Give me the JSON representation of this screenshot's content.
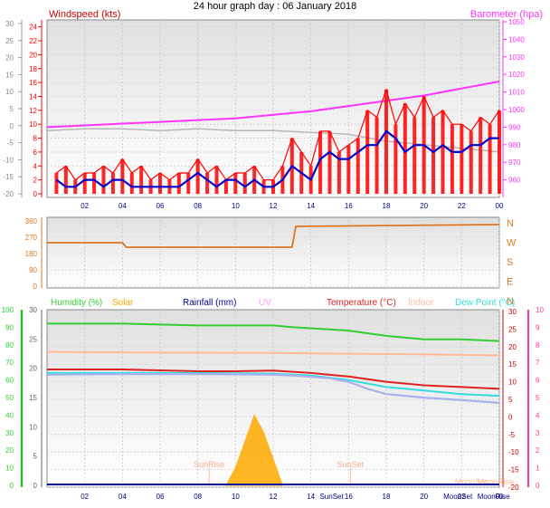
{
  "title": "24 hour graph day : 06 January 2018",
  "x_ticks": [
    "02",
    "04",
    "06",
    "08",
    "10",
    "12",
    "14",
    "16",
    "18",
    "20",
    "22",
    "00"
  ],
  "colors": {
    "wind_red": "#ff0000",
    "wind_blue": "#0000cc",
    "baro": "#ff33ff",
    "baro_grey": "#b8b8b8",
    "dir": "#dd7722",
    "humidity": "#33cc33",
    "solar": "#ffaa00",
    "rain": "#000099",
    "uv": "#ff99ff",
    "temperature": "#dd2222",
    "indoor": "#ffbb99",
    "dewpoint": "#33dddd",
    "apparent": "#aab0ee",
    "axis_green": "#00cc00",
    "axis_pink": "#ff3399"
  },
  "chart_data": [
    {
      "type": "line",
      "title": "Windspeed (kts)",
      "right_title": "Barometer (hpa)",
      "x_ticks": [
        "02",
        "04",
        "06",
        "08",
        "10",
        "12",
        "14",
        "16",
        "18",
        "20",
        "22",
        "00"
      ],
      "left_outer_ticks": [
        30,
        25,
        20,
        15,
        10,
        5,
        0,
        -5,
        -10,
        -15,
        -20
      ],
      "left_ticks": [
        0,
        2,
        4,
        6,
        8,
        10,
        12,
        14,
        16,
        18,
        20,
        22,
        24
      ],
      "right_ticks": [
        950,
        960,
        970,
        980,
        990,
        1000,
        1010,
        1020,
        1030,
        1040,
        1050
      ],
      "series": [
        {
          "role": "gust",
          "x": [
            0.5,
            1,
            1.5,
            2,
            2.5,
            3,
            3.5,
            4,
            4.5,
            5,
            5.5,
            6,
            6.5,
            7,
            7.5,
            8,
            8.5,
            9,
            9.5,
            10,
            10.5,
            11,
            11.5,
            12,
            12.5,
            13,
            13.5,
            14,
            14.5,
            15,
            15.5,
            16,
            16.5,
            17,
            17.5,
            18,
            18.5,
            19,
            19.5,
            20,
            20.5,
            21,
            21.5,
            22,
            22.5,
            23,
            23.5,
            24
          ],
          "values": [
            3,
            4,
            2,
            3,
            3,
            4,
            3,
            5,
            3,
            4,
            2,
            3,
            2,
            3,
            3,
            5,
            3,
            4,
            2,
            3,
            3,
            4,
            2,
            2,
            4,
            8,
            6,
            4,
            9,
            9,
            6,
            7,
            8,
            12,
            11,
            15,
            10,
            13,
            11,
            14,
            11,
            12,
            10,
            10,
            9,
            11,
            10,
            12
          ]
        },
        {
          "role": "avg",
          "x": [
            0.5,
            1,
            1.5,
            2,
            2.5,
            3,
            3.5,
            4,
            4.5,
            5,
            5.5,
            6,
            6.5,
            7,
            7.5,
            8,
            8.5,
            9,
            9.5,
            10,
            10.5,
            11,
            11.5,
            12,
            12.5,
            13,
            13.5,
            14,
            14.5,
            15,
            15.5,
            16,
            16.5,
            17,
            17.5,
            18,
            18.5,
            19,
            19.5,
            20,
            20.5,
            21,
            21.5,
            22,
            22.5,
            23,
            23.5,
            24
          ],
          "values": [
            2,
            1,
            1,
            2,
            2,
            1,
            2,
            2,
            1,
            1,
            1,
            1,
            1,
            1,
            2,
            3,
            2,
            1,
            2,
            2,
            1,
            2,
            1,
            1,
            2,
            4,
            3,
            2,
            5,
            6,
            5,
            5,
            6,
            7,
            7,
            9,
            8,
            6,
            7,
            7,
            6,
            7,
            6,
            6,
            7,
            7,
            8,
            8
          ]
        },
        {
          "role": "barometer",
          "x": [
            0,
            2,
            4,
            6,
            8,
            10,
            12,
            14,
            16,
            18,
            20,
            22,
            24
          ],
          "values": [
            990,
            991,
            992,
            993,
            994,
            995,
            997,
            999,
            1002,
            1005,
            1008,
            1012,
            1016
          ]
        },
        {
          "role": "barometer-prev",
          "x": [
            0,
            2,
            4,
            6,
            8,
            10,
            12,
            14,
            16,
            18,
            20,
            22,
            24
          ],
          "values": [
            988,
            989,
            989,
            988,
            989,
            988,
            988,
            987,
            986,
            982,
            980,
            978,
            976
          ]
        }
      ]
    },
    {
      "type": "line",
      "title": "Wind direction",
      "left_ticks": [
        360,
        270,
        180,
        90,
        0
      ],
      "right_labels": [
        "N",
        "W",
        "S",
        "E",
        "N"
      ],
      "x": [
        0,
        4,
        4.2,
        13,
        13.2,
        24
      ],
      "values": [
        240,
        240,
        215,
        215,
        330,
        340
      ]
    },
    {
      "type": "line",
      "legend": [
        "Humidity (%)",
        "Solar",
        "Rainfall (mm)",
        "UV",
        "Temperature (°C)",
        "Indoor",
        "Dew Point (°C)"
      ],
      "x_labels_extra": [
        "SunRise",
        "SunSet",
        "MoonSet",
        "MoonRise"
      ],
      "x_label_bottom": [
        "SunSet",
        "MoonSet",
        "MoonRise"
      ],
      "left_outer_ticks": [
        100,
        90,
        80,
        70,
        60,
        50,
        40,
        30,
        20,
        10,
        0
      ],
      "left_ticks": [
        30,
        25,
        20,
        15,
        10,
        5,
        0
      ],
      "right_ticks": [
        30,
        25,
        20,
        15,
        10,
        5,
        0,
        -5,
        -10,
        -15,
        -20
      ],
      "right_outer_ticks": [
        10,
        9,
        8,
        7,
        6,
        5,
        4,
        3,
        2,
        1,
        0
      ],
      "series": [
        {
          "name": "Humidity (%)",
          "x": [
            0,
            4,
            8,
            12,
            13,
            16,
            18,
            20,
            22,
            24
          ],
          "values": [
            93,
            93,
            92,
            92,
            91,
            89,
            86,
            84,
            84,
            83
          ]
        },
        {
          "name": "Temperature (°C)",
          "x": [
            0,
            4,
            8,
            10,
            12,
            14,
            16,
            18,
            20,
            22,
            24
          ],
          "values": [
            13.5,
            13.5,
            13,
            13,
            13.2,
            12.5,
            11.5,
            10,
            9,
            8.5,
            8
          ]
        },
        {
          "name": "Indoor",
          "x": [
            0,
            6,
            12,
            16,
            20,
            24
          ],
          "values": [
            18.5,
            18.3,
            18.2,
            18,
            17.8,
            17.5
          ]
        },
        {
          "name": "Dew Point (°C)",
          "x": [
            0,
            4,
            8,
            12,
            14,
            16,
            18,
            20,
            22,
            24
          ],
          "values": [
            12.5,
            12.5,
            12.5,
            12.3,
            11.8,
            10.5,
            8.5,
            7.5,
            6.5,
            6
          ]
        },
        {
          "name": "apparent",
          "x": [
            0,
            4,
            8,
            12,
            13,
            15,
            16,
            17,
            18,
            20,
            22,
            24
          ],
          "values": [
            12,
            12.2,
            12.2,
            12,
            11.8,
            11,
            10,
            8,
            6.5,
            5.5,
            4.8,
            4
          ]
        },
        {
          "name": "Solar",
          "x": [
            9.5,
            10,
            10.5,
            11,
            11.5,
            12,
            12.5
          ],
          "values": [
            0,
            10,
            25,
            40,
            30,
            15,
            0
          ]
        },
        {
          "name": "Rainfall (mm)",
          "x": [
            0,
            24
          ],
          "values": [
            0,
            0
          ]
        }
      ]
    }
  ]
}
